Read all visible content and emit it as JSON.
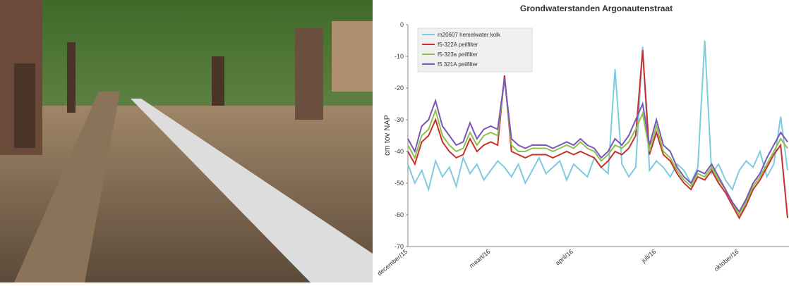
{
  "chart_data": {
    "type": "line",
    "title": "Grondwaterstanden Argonautenstraat",
    "y_label": "cm tov NAP",
    "categories": [
      "december/15",
      null,
      null,
      null,
      null,
      null,
      null,
      null,
      null,
      null,
      null,
      null,
      "maart/16",
      null,
      null,
      null,
      null,
      null,
      null,
      null,
      null,
      null,
      null,
      null,
      "april/16",
      null,
      null,
      null,
      null,
      null,
      null,
      null,
      null,
      null,
      null,
      null,
      "juli/16",
      null,
      null,
      null,
      null,
      null,
      null,
      null,
      null,
      null,
      null,
      null,
      "oktober/16",
      null,
      null,
      null,
      null,
      null,
      null,
      null
    ],
    "ylim": [
      -70,
      0
    ],
    "yticks": [
      -70,
      -60,
      -50,
      -40,
      -30,
      -20,
      -10,
      0
    ],
    "legend": "upper-left",
    "series": [
      {
        "name": "m20607 hemelwater kolk",
        "color": "#7ecbe0",
        "values": [
          -44,
          -50,
          -46,
          -52,
          -43,
          -48,
          -45,
          -51,
          -42,
          -47,
          -44,
          -49,
          -46,
          -43,
          -45,
          -48,
          -44,
          -50,
          -46,
          -42,
          -47,
          -45,
          -43,
          -49,
          -44,
          -46,
          -48,
          -42,
          -45,
          -47,
          -14,
          -44,
          -48,
          -45,
          -7,
          -46,
          -43,
          -45,
          -48,
          -44,
          -46,
          -50,
          -45,
          -5,
          -47,
          -44,
          -49,
          -52,
          -46,
          -43,
          -45,
          -40,
          -48,
          -44,
          -29,
          -46
        ]
      },
      {
        "name": "f5-322A peilfilter",
        "color": "#c9302c",
        "values": [
          -40,
          -44,
          -37,
          -35,
          -30,
          -37,
          -40,
          -42,
          -41,
          -36,
          -40,
          -38,
          -37,
          -38,
          -16,
          -40,
          -41,
          -42,
          -41,
          -41,
          -41,
          -42,
          -41,
          -40,
          -41,
          -40,
          -41,
          -42,
          -45,
          -43,
          -40,
          -41,
          -39,
          -35,
          -8,
          -41,
          -34,
          -41,
          -43,
          -47,
          -50,
          -52,
          -48,
          -49,
          -46,
          -50,
          -53,
          -57,
          -61,
          -57,
          -52,
          -49,
          -45,
          -41,
          -38,
          -61
        ]
      },
      {
        "name": "f5-323a peilfilter",
        "color": "#8cc24a",
        "values": [
          -38,
          -42,
          -35,
          -33,
          -27,
          -35,
          -38,
          -40,
          -39,
          -34,
          -38,
          -35,
          -34,
          -35,
          -17,
          -38,
          -40,
          -40,
          -39,
          -39,
          -39,
          -40,
          -39,
          -38,
          -39,
          -37,
          -39,
          -40,
          -43,
          -41,
          -38,
          -39,
          -37,
          -33,
          -28,
          -40,
          -32,
          -40,
          -42,
          -46,
          -49,
          -51,
          -47,
          -48,
          -45,
          -49,
          -52,
          -56,
          -60,
          -56,
          -51,
          -48,
          -44,
          -40,
          -36,
          -39
        ]
      },
      {
        "name": "f5 321A peilfilter",
        "color": "#7b55b8",
        "values": [
          -36,
          -40,
          -32,
          -30,
          -24,
          -32,
          -35,
          -38,
          -37,
          -31,
          -36,
          -33,
          -32,
          -33,
          -17,
          -36,
          -38,
          -39,
          -38,
          -38,
          -38,
          -39,
          -38,
          -37,
          -38,
          -36,
          -38,
          -39,
          -42,
          -40,
          -36,
          -38,
          -35,
          -30,
          -25,
          -38,
          -30,
          -38,
          -40,
          -45,
          -48,
          -50,
          -46,
          -47,
          -44,
          -48,
          -52,
          -56,
          -59,
          -55,
          -50,
          -47,
          -42,
          -38,
          -34,
          -37
        ]
      }
    ]
  }
}
